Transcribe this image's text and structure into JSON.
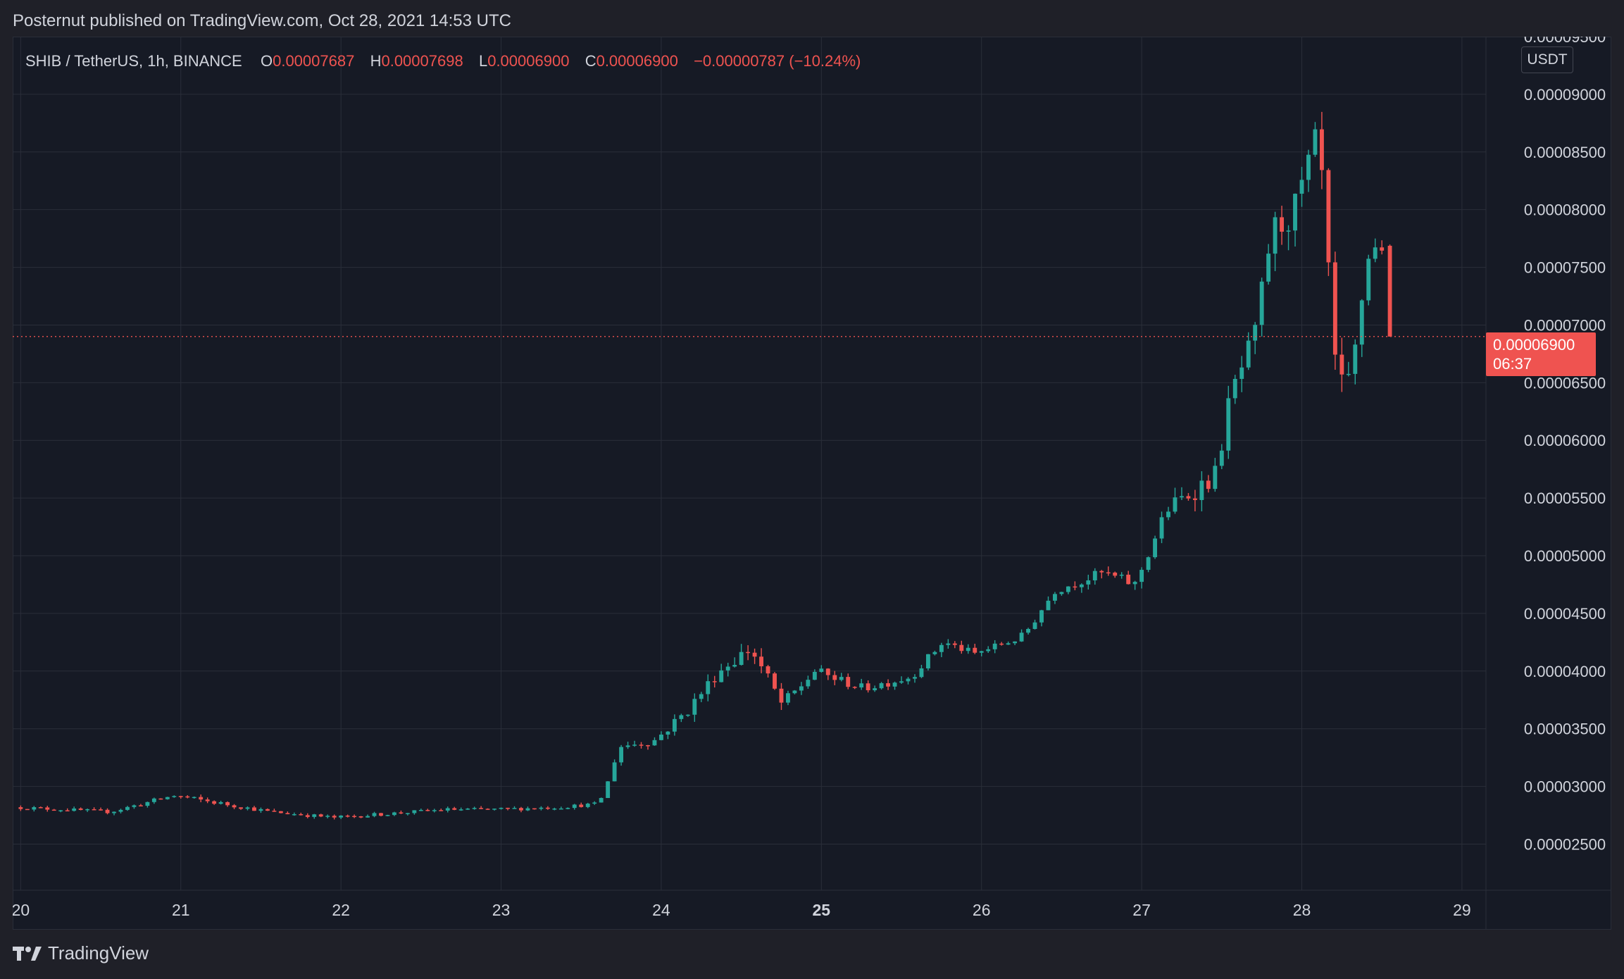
{
  "header": {
    "text": "Posternut published on TradingView.com, Oct 28, 2021 14:53 UTC"
  },
  "legend": {
    "symbol": "SHIB / TetherUS, 1h, BINANCE",
    "open_label": "O",
    "open": "0.00007687",
    "high_label": "H",
    "high": "0.00007698",
    "low_label": "L",
    "low": "0.00006900",
    "close_label": "C",
    "close": "0.00006900",
    "change": "−0.00000787 (−10.24%)"
  },
  "currency_button": "USDT",
  "last_price": {
    "value": "0.00006900",
    "countdown": "06:37"
  },
  "footer": {
    "brand": "TradingView",
    "logo_icon": "tradingview-logo-icon"
  },
  "colors": {
    "up": "#26a69a",
    "down": "#ef5350",
    "background": "#161a25",
    "grid": "#2a2e39",
    "text": "#d1d4dc"
  },
  "chart_data": {
    "type": "candlestick",
    "timeframe": "1h",
    "x_tick_labels": [
      "20",
      "21",
      "22",
      "23",
      "24",
      "25",
      "26",
      "27",
      "28",
      "29"
    ],
    "x_ticks_day": [
      20,
      21,
      22,
      23,
      24,
      25,
      26,
      27,
      28,
      29
    ],
    "x_bold_tick": "25",
    "x_range_day": [
      19.95,
      29.15
    ],
    "y_tick_labels": [
      "0.00002500",
      "0.00003000",
      "0.00003500",
      "0.00004000",
      "0.00004500",
      "0.00005000",
      "0.00005500",
      "0.00006000",
      "0.00006500",
      "0.00007000",
      "0.00007500",
      "0.00008000",
      "0.00008500",
      "0.00009000",
      "0.00009500"
    ],
    "y_ticks": [
      2.5,
      3.0,
      3.5,
      4.0,
      4.5,
      5.0,
      5.5,
      6.0,
      6.5,
      7.0,
      7.5,
      8.0,
      8.5,
      9.0,
      9.5
    ],
    "y_unit": "1e-5 USDT",
    "y_range": [
      2.1,
      9.5
    ],
    "last_price_line": 6.9,
    "anchors": [
      [
        20.0,
        2.82,
        0.02
      ],
      [
        20.6,
        2.78,
        0.02
      ],
      [
        21.0,
        2.92,
        0.03
      ],
      [
        21.6,
        2.78,
        0.02
      ],
      [
        22.0,
        2.73,
        0.02
      ],
      [
        22.4,
        2.77,
        0.02
      ],
      [
        22.7,
        2.8,
        0.02
      ],
      [
        23.0,
        2.8,
        0.02
      ],
      [
        23.4,
        2.82,
        0.02
      ],
      [
        23.66,
        2.85,
        0.02
      ],
      [
        23.72,
        3.33,
        0.04
      ],
      [
        24.0,
        3.4,
        0.05
      ],
      [
        24.2,
        3.65,
        0.07
      ],
      [
        24.4,
        4.0,
        0.07
      ],
      [
        24.6,
        4.2,
        0.09
      ],
      [
        24.8,
        3.7,
        0.08
      ],
      [
        25.0,
        4.0,
        0.06
      ],
      [
        25.3,
        3.85,
        0.05
      ],
      [
        25.6,
        3.95,
        0.05
      ],
      [
        25.8,
        4.25,
        0.05
      ],
      [
        26.0,
        4.15,
        0.04
      ],
      [
        26.3,
        4.3,
        0.05
      ],
      [
        26.5,
        4.7,
        0.05
      ],
      [
        26.8,
        4.85,
        0.06
      ],
      [
        27.0,
        4.75,
        0.06
      ],
      [
        27.2,
        5.4,
        0.09
      ],
      [
        27.4,
        5.6,
        0.12
      ],
      [
        27.5,
        5.7,
        0.12
      ],
      [
        27.6,
        6.4,
        0.13
      ],
      [
        27.75,
        6.9,
        0.15
      ],
      [
        27.85,
        7.8,
        0.18
      ],
      [
        28.0,
        8.0,
        0.2
      ],
      [
        28.15,
        8.65,
        0.2
      ],
      [
        28.25,
        6.4,
        0.2
      ],
      [
        28.35,
        6.5,
        0.15
      ],
      [
        28.45,
        7.6,
        0.15
      ],
      [
        28.55,
        7.7,
        0.1
      ]
    ],
    "last_candle": {
      "open": 7.687,
      "high": 7.698,
      "low": 6.9,
      "close": 6.9
    },
    "series_color_up": "#26a69a",
    "series_color_down": "#ef5350",
    "grid": true
  }
}
